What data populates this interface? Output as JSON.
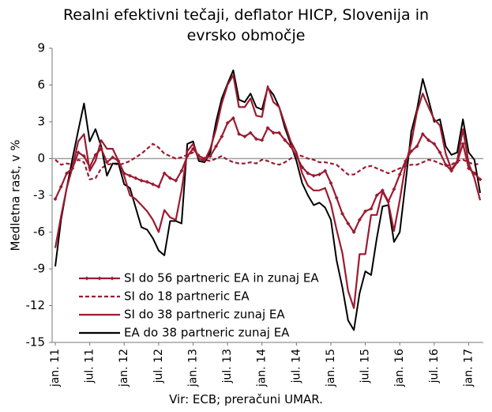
{
  "chart_data": {
    "type": "line",
    "title": "Realni efektivni tečaji, deflator HICP, Slovenija in evrsko območje",
    "title_lines": [
      "Realni efektivni tečaji, deflator HICP, Slovenija in",
      "evrsko območje"
    ],
    "ylabel": "Medletna rast, v %",
    "xlabel": "",
    "ylim": [
      -15,
      9
    ],
    "y_ticks": [
      9,
      6,
      3,
      0,
      -3,
      -6,
      -9,
      -12,
      -15
    ],
    "x_ticks": [
      {
        "label": "jan. 11",
        "index": 0
      },
      {
        "label": "jul. 11",
        "index": 6
      },
      {
        "label": "jan. 12",
        "index": 12
      },
      {
        "label": "jul. 12",
        "index": 18
      },
      {
        "label": "jan. 13",
        "index": 24
      },
      {
        "label": "jul. 13",
        "index": 30
      },
      {
        "label": "jan. 14",
        "index": 36
      },
      {
        "label": "jul. 14",
        "index": 42
      },
      {
        "label": "jan. 15",
        "index": 48
      },
      {
        "label": "jul. 15",
        "index": 54
      },
      {
        "label": "jan. 16",
        "index": 60
      },
      {
        "label": "jul. 16",
        "index": 66
      },
      {
        "label": "jan. 17",
        "index": 72
      }
    ],
    "x_start": "jan. 11",
    "x_end": "mar. 17",
    "grid": false,
    "legend_position": "bottom-left",
    "series": [
      {
        "name": "SI do 56 partneric EA in zunaj EA",
        "color": "#9b1b30",
        "style": "solid-diamond",
        "values": [
          -3.3,
          -2.3,
          -1.2,
          -0.8,
          0.5,
          0.2,
          -0.7,
          0.3,
          0.8,
          -0.3,
          0.1,
          -0.2,
          -1.2,
          -1.4,
          -1.6,
          -1.8,
          -1.9,
          -2.1,
          -2.3,
          -1.2,
          -1.6,
          -1.8,
          -1.0,
          0.2,
          0.8,
          0.2,
          0.0,
          0.2,
          1.0,
          1.8,
          2.9,
          3.3,
          2.0,
          1.8,
          2.1,
          1.6,
          1.5,
          2.5,
          2.1,
          2.1,
          1.5,
          1.0,
          0.2,
          -0.7,
          -1.2,
          -1.4,
          -1.3,
          -1.0,
          -2.0,
          -3.2,
          -4.5,
          -5.3,
          -6.0,
          -5.0,
          -4.3,
          -4.1,
          -3.0,
          -2.6,
          -3.5,
          -2.5,
          -1.3,
          -0.2,
          0.6,
          1.0,
          2.0,
          1.5,
          1.2,
          0.5,
          -0.5,
          -1.0,
          -0.3,
          1.2,
          -0.8,
          -1.2,
          -1.7
        ]
      },
      {
        "name": "SI do 18 partneric EA",
        "color": "#9b1b30",
        "style": "dashed",
        "values": [
          -0.1,
          -0.5,
          -0.4,
          -0.5,
          -0.1,
          -0.3,
          -1.7,
          -1.6,
          -0.8,
          -0.5,
          -0.4,
          -0.5,
          -0.4,
          -0.2,
          0.1,
          0.4,
          0.8,
          1.2,
          0.9,
          0.4,
          0.2,
          0.0,
          0.1,
          0.3,
          0.5,
          0.3,
          -0.1,
          -0.2,
          0.0,
          0.2,
          -0.1,
          -0.3,
          -0.4,
          -0.4,
          -0.3,
          -0.4,
          -0.1,
          -0.2,
          -0.4,
          -0.5,
          -0.3,
          0.0,
          0.3,
          0.2,
          0.0,
          -0.1,
          -0.3,
          -0.3,
          -0.4,
          -0.5,
          -0.9,
          -1.3,
          -1.3,
          -1.0,
          -0.7,
          -0.6,
          -0.8,
          -1.0,
          -1.2,
          -1.0,
          -0.8,
          -0.6,
          -0.5,
          -0.5,
          -0.3,
          -0.1,
          -0.2,
          -0.4,
          -0.6,
          -0.5,
          -0.2,
          -0.1,
          -0.3,
          -0.5,
          -0.4
        ]
      },
      {
        "name": "SI do 38 partneric zunaj EA",
        "color": "#9b1b30",
        "style": "solid",
        "values": [
          -7.3,
          -4.7,
          -2.4,
          -0.7,
          1.4,
          2.0,
          -1.0,
          -0.2,
          1.5,
          0.8,
          0.8,
          -0.2,
          -1.4,
          -3.0,
          -3.3,
          -3.8,
          -4.3,
          -5.0,
          -6.0,
          -4.2,
          -4.8,
          -5.0,
          -2.6,
          0.6,
          1.2,
          0.0,
          -0.2,
          0.8,
          2.4,
          4.5,
          6.0,
          6.8,
          4.2,
          4.2,
          4.9,
          3.5,
          3.4,
          5.9,
          4.6,
          4.2,
          2.8,
          1.4,
          0.5,
          -1.2,
          -2.2,
          -2.6,
          -2.6,
          -2.4,
          -3.7,
          -5.8,
          -7.7,
          -10.8,
          -12.2,
          -7.8,
          -7.8,
          -4.6,
          -4.6,
          -2.7,
          -3.6,
          -5.9,
          -3.4,
          -0.5,
          1.3,
          3.8,
          5.3,
          4.2,
          3.2,
          2.7,
          0.4,
          -0.9,
          -0.2,
          2.4,
          -0.4,
          -1.6,
          -3.4
        ]
      },
      {
        "name": "EA do 38 partneric zunaj EA",
        "color": "#000000",
        "style": "solid",
        "values": [
          -8.8,
          -5.0,
          -2.4,
          0.0,
          2.3,
          4.5,
          1.4,
          2.4,
          1.0,
          -1.4,
          -0.4,
          -0.4,
          -2.1,
          -2.4,
          -4.0,
          -5.6,
          -5.8,
          -6.5,
          -7.5,
          -7.9,
          -5.1,
          -5.1,
          -5.3,
          1.2,
          1.4,
          -0.2,
          -0.3,
          0.5,
          3.0,
          4.9,
          6.1,
          7.2,
          4.8,
          4.6,
          5.3,
          4.2,
          4.0,
          5.8,
          5.2,
          4.2,
          2.5,
          1.2,
          -0.2,
          -2.0,
          -3.0,
          -3.8,
          -3.6,
          -4.0,
          -5.0,
          -8.3,
          -10.5,
          -13.2,
          -14.0,
          -11.0,
          -9.2,
          -9.5,
          -6.5,
          -3.9,
          -3.8,
          -6.8,
          -6.0,
          -2.0,
          2.2,
          4.0,
          6.5,
          4.8,
          3.0,
          3.2,
          1.0,
          0.3,
          0.5,
          3.2,
          0.5,
          -0.1,
          -2.8
        ]
      }
    ],
    "source": "Vir: ECB; preračuni UMAR."
  }
}
